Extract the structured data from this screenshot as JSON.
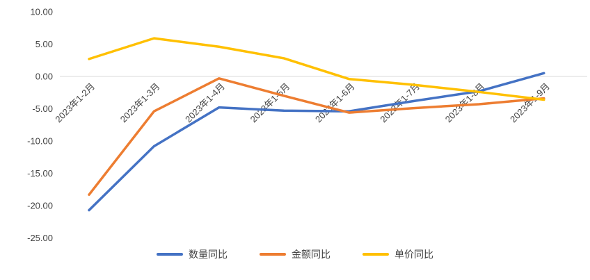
{
  "chart_data": {
    "type": "line",
    "title": "",
    "xlabel": "",
    "ylabel": "",
    "categories": [
      "2023年1-2月",
      "2023年1-3月",
      "2023年1-4月",
      "2023年1-5月",
      "2023年1-6月",
      "2023年1-7月",
      "2023年1-8月",
      "2023年1-9月"
    ],
    "series": [
      {
        "name": "数量同比",
        "color": "#4472C4",
        "values": [
          -20.7,
          -10.8,
          -4.8,
          -5.3,
          -5.4,
          -3.8,
          -2.3,
          0.5
        ]
      },
      {
        "name": "金额同比",
        "color": "#ED7D31",
        "values": [
          -18.3,
          -5.4,
          -0.3,
          -3.0,
          -5.6,
          -4.9,
          -4.3,
          -3.4
        ]
      },
      {
        "name": "单价同比",
        "color": "#FFC000",
        "values": [
          2.7,
          5.9,
          4.6,
          2.8,
          -0.4,
          -1.3,
          -2.4,
          -3.6
        ]
      }
    ],
    "y_axis": {
      "min": -25,
      "max": 10,
      "tick_step": 5,
      "tick_labels": [
        "10.00",
        "5.00",
        "0.00",
        "-5.00",
        "-10.00",
        "-15.00",
        "-20.00",
        "-25.00"
      ]
    },
    "grid": "zero-line-only",
    "legend_position": "bottom"
  }
}
